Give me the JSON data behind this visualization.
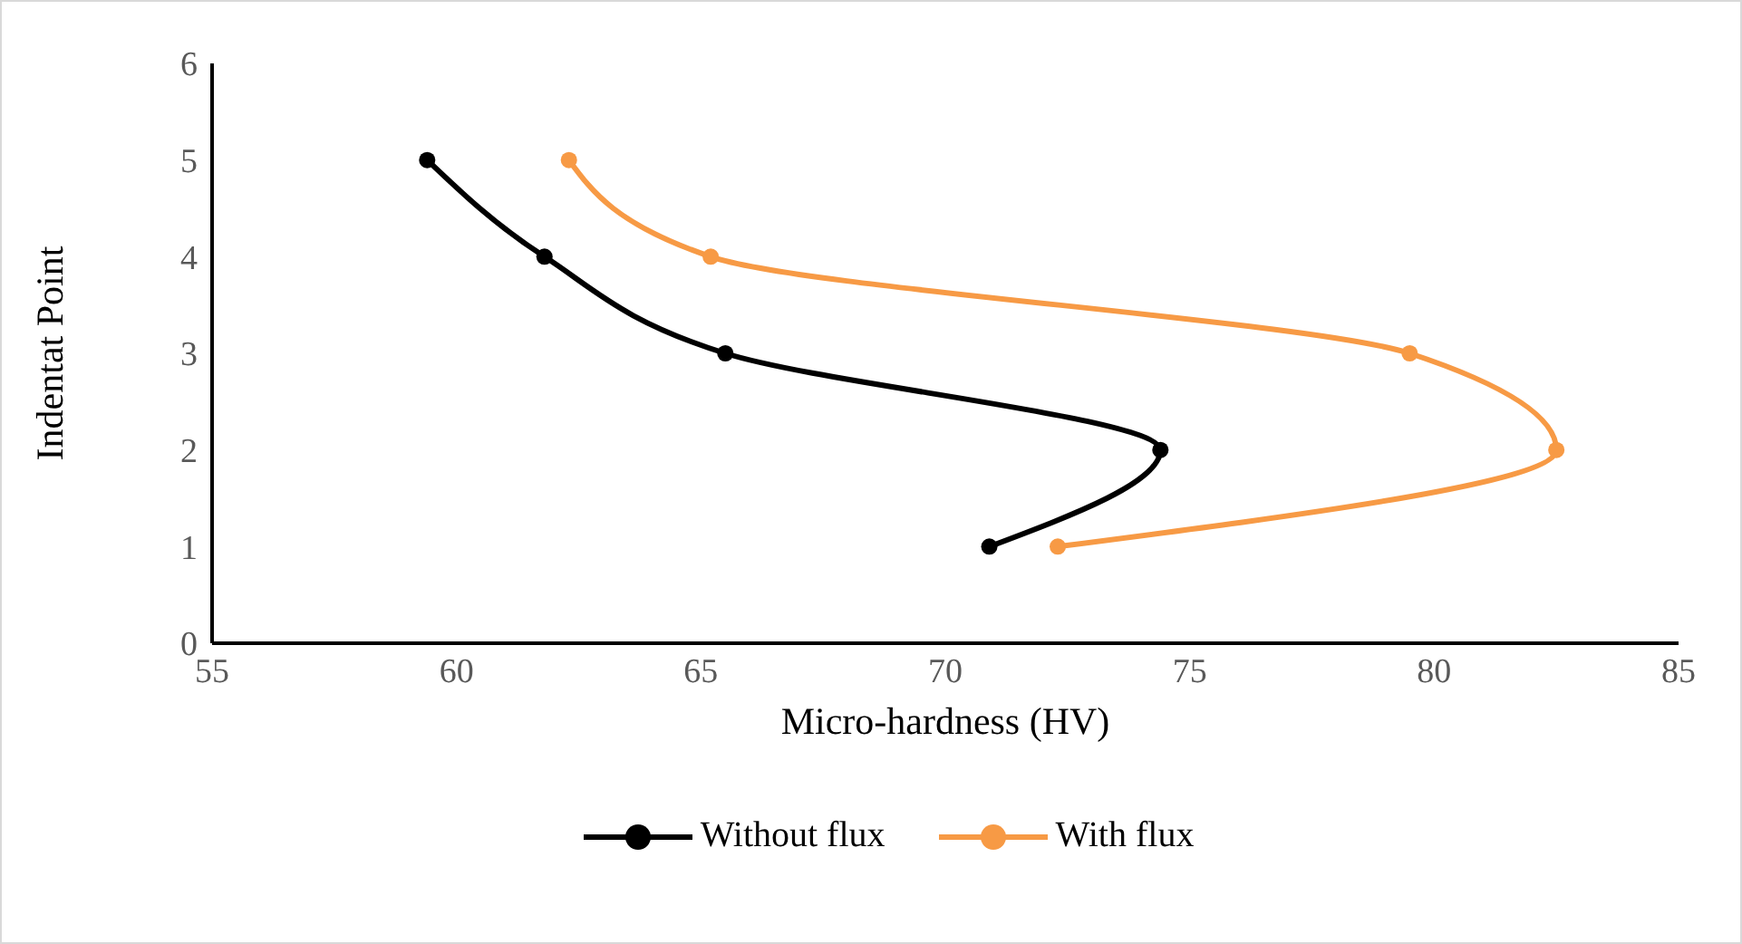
{
  "chart_data": {
    "type": "line",
    "xlabel": "Micro-hardness (HV)",
    "ylabel": "Indentat Point",
    "xlim": [
      55,
      85
    ],
    "xticks": [
      55,
      60,
      65,
      70,
      75,
      80,
      85
    ],
    "ylim": [
      0,
      6
    ],
    "yticks": [
      0,
      1,
      2,
      3,
      4,
      5,
      6
    ],
    "legend": "bottom",
    "marker": "circle",
    "line_style": "solid",
    "series": [
      {
        "name": "Without flux",
        "color": "#000000",
        "x": [
          70.9,
          74.4,
          65.5,
          61.8,
          59.4
        ],
        "values": [
          1,
          2,
          3,
          4,
          5
        ]
      },
      {
        "name": "With flux",
        "color": "#f79a45",
        "x": [
          72.3,
          82.5,
          79.5,
          65.2,
          62.3
        ],
        "values": [
          1,
          2,
          3,
          4,
          5
        ]
      }
    ]
  }
}
